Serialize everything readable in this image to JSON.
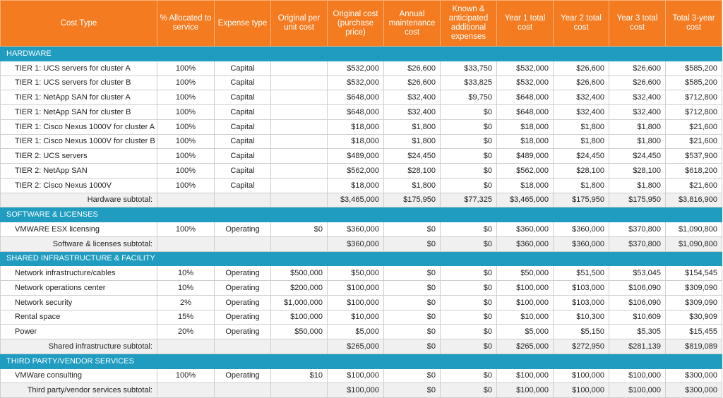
{
  "table": {
    "columns": [
      "Cost Type",
      "% Allocated to service",
      "Expense type",
      "Original per unit cost",
      "Original cost (purchase price)",
      "Annual maintenance cost",
      "Known & anticipated additional expenses",
      "Year 1 total cost",
      "Year 2 total cost",
      "Year 3 total cost",
      "Total 3-year cost"
    ],
    "sections": [
      {
        "title": "HARDWARE",
        "rows": [
          [
            "TIER 1: UCS servers for cluster A",
            "100%",
            "Capital",
            null,
            "$532,000",
            "$26,600",
            "$33,750",
            "$532,000",
            "$26,600",
            "$26,600",
            "$585,200"
          ],
          [
            "TIER 1: UCS servers for cluster B",
            "100%",
            "Capital",
            null,
            "$532,000",
            "$26,600",
            "$33,825",
            "$532,000",
            "$26,600",
            "$26,600",
            "$585,200"
          ],
          [
            "TIER 1: NetApp SAN for cluster A",
            "100%",
            "Capital",
            null,
            "$648,000",
            "$32,400",
            "$9,750",
            "$648,000",
            "$32,400",
            "$32,400",
            "$712,800"
          ],
          [
            "TIER 1: NetApp SAN for cluster B",
            "100%",
            "Capital",
            null,
            "$648,000",
            "$32,400",
            "$0",
            "$648,000",
            "$32,400",
            "$32,400",
            "$712,800"
          ],
          [
            "TIER 1: Cisco Nexus 1000V for cluster A",
            "100%",
            "Capital",
            null,
            "$18,000",
            "$1,800",
            "$0",
            "$18,000",
            "$1,800",
            "$1,800",
            "$21,600"
          ],
          [
            "TIER 1: Cisco Nexus 1000V for cluster B",
            "100%",
            "Capital",
            null,
            "$18,000",
            "$1,800",
            "$0",
            "$18,000",
            "$1,800",
            "$1,800",
            "$21,600"
          ],
          [
            "TIER 2: UCS servers",
            "100%",
            "Capital",
            null,
            "$489,000",
            "$24,450",
            "$0",
            "$489,000",
            "$24,450",
            "$24,450",
            "$537,900"
          ],
          [
            "TIER 2: NetApp SAN",
            "100%",
            "Capital",
            null,
            "$562,000",
            "$28,100",
            "$0",
            "$562,000",
            "$28,100",
            "$28,100",
            "$618,200"
          ],
          [
            "TIER 2: Cisco Nexus 1000V",
            "100%",
            "Capital",
            null,
            "$18,000",
            "$1,800",
            "$0",
            "$18,000",
            "$1,800",
            "$1,800",
            "$21,600"
          ]
        ],
        "subtotal": [
          "Hardware subtotal:",
          null,
          null,
          null,
          "$3,465,000",
          "$175,950",
          "$77,325",
          "$3,465,000",
          "$175,950",
          "$175,950",
          "$3,816,900"
        ]
      },
      {
        "title": "SOFTWARE & LICENSES",
        "rows": [
          [
            "VMWARE ESX licensing",
            "100%",
            "Operating",
            "$0",
            "$360,000",
            "$0",
            "$0",
            "$360,000",
            "$360,000",
            "$370,800",
            "$1,090,800"
          ]
        ],
        "subtotal": [
          "Software & licenses subtotal:",
          null,
          null,
          null,
          "$360,000",
          "$0",
          "$0",
          "$360,000",
          "$360,000",
          "$370,800",
          "$1,090,800"
        ]
      },
      {
        "title": "SHARED INFRASTRUCTURE & FACILITY",
        "rows": [
          [
            "Network infrastructure/cables",
            "10%",
            "Operating",
            "$500,000",
            "$50,000",
            "$0",
            "$0",
            "$50,000",
            "$51,500",
            "$53,045",
            "$154,545"
          ],
          [
            "Network operations center",
            "10%",
            "Operating",
            "$200,000",
            "$100,000",
            "$0",
            "$0",
            "$100,000",
            "$103,000",
            "$106,090",
            "$309,090"
          ],
          [
            "Network security",
            "2%",
            "Operating",
            "$1,000,000",
            "$100,000",
            "$0",
            "$0",
            "$100,000",
            "$103,000",
            "$106,090",
            "$309,090"
          ],
          [
            "Rental space",
            "15%",
            "Operating",
            "$100,000",
            "$10,000",
            "$0",
            "$0",
            "$10,000",
            "$10,300",
            "$10,609",
            "$30,909"
          ],
          [
            "Power",
            "20%",
            "Operating",
            "$50,000",
            "$5,000",
            "$0",
            "$0",
            "$5,000",
            "$5,150",
            "$5,305",
            "$15,455"
          ]
        ],
        "subtotal": [
          "Shared infrastructure subtotal:",
          null,
          null,
          null,
          "$265,000",
          "$0",
          "$0",
          "$265,000",
          "$272,950",
          "$281,139",
          "$819,089"
        ]
      },
      {
        "title": "THIRD PARTY/VENDOR SERVICES",
        "rows": [
          [
            "VMWare consulting",
            "100%",
            "Operating",
            "$10",
            "$100,000",
            "$0",
            "$0",
            "$100,000",
            "$100,000",
            "$100,000",
            "$300,000"
          ]
        ],
        "subtotal": [
          "Third party/vendor services subtotal:",
          null,
          null,
          null,
          "$100,000",
          "$0",
          "$0",
          "$100,000",
          "$100,000",
          "$100,000",
          "$300,000"
        ]
      }
    ]
  }
}
